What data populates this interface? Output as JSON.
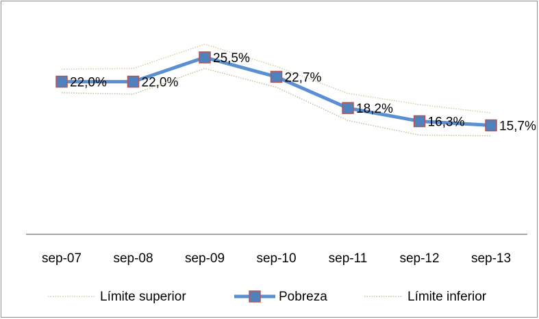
{
  "chart_data": {
    "type": "line",
    "categories": [
      "sep-07",
      "sep-08",
      "sep-09",
      "sep-10",
      "sep-11",
      "sep-12",
      "sep-13"
    ],
    "ylim": [
      0,
      32
    ],
    "legend": "bottom",
    "series": [
      {
        "name": "Límite superior",
        "color": "#d3cba6",
        "style": "dotted",
        "values": [
          23.8,
          23.9,
          27.4,
          24.2,
          20.3,
          18.7,
          17.5
        ]
      },
      {
        "name": "Pobreza",
        "color": "#5a8fd2",
        "marker_color": "#4f81bd",
        "marker_edge": "#c0504d",
        "values": [
          22.0,
          22.0,
          25.5,
          22.7,
          18.2,
          16.3,
          15.7
        ],
        "value_labels": [
          "22,0%",
          "22,0%",
          "25,5%",
          "22,7%",
          "18,2%",
          "16,3%",
          "15,7%"
        ]
      },
      {
        "name": "Límite inferior",
        "color": "#c4bd97",
        "style": "dotted",
        "values": [
          20.4,
          20.2,
          23.9,
          21.2,
          16.4,
          14.3,
          14.2
        ]
      }
    ]
  }
}
